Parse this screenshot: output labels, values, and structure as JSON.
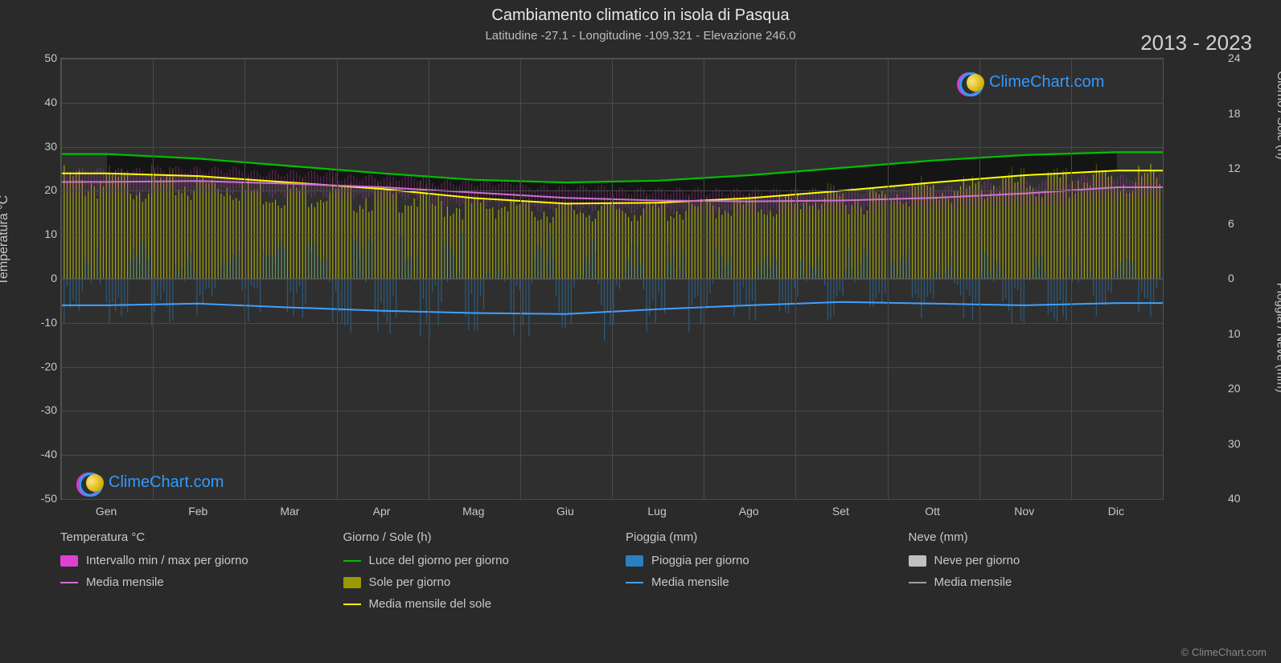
{
  "title": "Cambiamento climatico in isola di Pasqua",
  "subtitle": "Latitudine -27.1 - Longitudine -109.321 - Elevazione 246.0",
  "year_range": "2013 - 2023",
  "copyright": "© ClimeChart.com",
  "watermark_text": "ClimeChart.com",
  "axes": {
    "left_label": "Temperatura °C",
    "left_min": -50,
    "left_max": 50,
    "left_ticks": [
      -50,
      -40,
      -30,
      -20,
      -10,
      0,
      10,
      20,
      30,
      40,
      50
    ],
    "right_upper_label": "Giorno / Sole (h)",
    "right_upper_min": 0,
    "right_upper_max": 24,
    "right_upper_ticks": [
      0,
      6,
      12,
      18,
      24
    ],
    "right_lower_label": "Pioggia / Neve (mm)",
    "right_lower_min": 0,
    "right_lower_max": 40,
    "right_lower_ticks": [
      0,
      10,
      20,
      30,
      40
    ],
    "months": [
      "Gen",
      "Feb",
      "Mar",
      "Apr",
      "Mag",
      "Giu",
      "Lug",
      "Ago",
      "Set",
      "Ott",
      "Nov",
      "Dic"
    ]
  },
  "colors": {
    "background": "#2a2a2a",
    "plot_bg": "#2f2f2f",
    "grid": "#4a4a4a",
    "text": "#c8c8c8",
    "temp_range": "#e040d0",
    "temp_mean": "#d070d0",
    "daylight": "#00c000",
    "sunshine_fill": "#b8b800",
    "sunshine_mean": "#ffff00",
    "rain_fill": "#2a80c0",
    "rain_mean": "#40a0ff",
    "snow_fill": "#c0c0c0",
    "snow_mean": "#a0a0a0",
    "watermark_ring1": "#d040d0",
    "watermark_ring2": "#3399ff"
  },
  "series": {
    "daylight_h": [
      13.6,
      13.1,
      12.3,
      11.5,
      10.8,
      10.5,
      10.7,
      11.3,
      12.1,
      12.9,
      13.5,
      13.8
    ],
    "sunshine_mean_h": [
      11.5,
      11.2,
      10.5,
      9.8,
      8.8,
      8.2,
      8.3,
      8.8,
      9.6,
      10.5,
      11.3,
      11.8
    ],
    "temp_mean_c": [
      22.0,
      22.2,
      21.6,
      20.8,
      19.6,
      18.4,
      17.8,
      17.6,
      17.8,
      18.4,
      19.4,
      20.8
    ],
    "temp_min_c": [
      19.5,
      19.8,
      19.2,
      18.5,
      17.2,
      16.0,
      15.5,
      15.3,
      15.6,
      16.2,
      17.2,
      18.5
    ],
    "temp_max_c": [
      24.5,
      24.8,
      24.0,
      23.0,
      21.8,
      20.6,
      20.0,
      19.8,
      20.0,
      20.6,
      21.6,
      23.0
    ],
    "rain_mean_mm": [
      4.8,
      4.5,
      5.2,
      5.8,
      6.2,
      6.4,
      5.5,
      4.8,
      4.2,
      4.5,
      4.8,
      4.4
    ]
  },
  "legend": {
    "temp": {
      "header": "Temperatura °C",
      "range": "Intervallo min / max per giorno",
      "mean": "Media mensile"
    },
    "day": {
      "header": "Giorno / Sole (h)",
      "daylight": "Luce del giorno per giorno",
      "sun": "Sole per giorno",
      "sunmean": "Media mensile del sole"
    },
    "rain": {
      "header": "Pioggia (mm)",
      "daily": "Pioggia per giorno",
      "mean": "Media mensile"
    },
    "snow": {
      "header": "Neve (mm)",
      "daily": "Neve per giorno",
      "mean": "Media mensile"
    }
  }
}
